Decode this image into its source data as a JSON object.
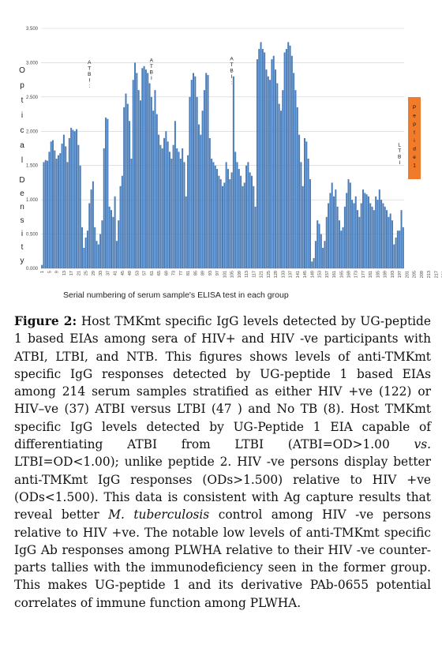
{
  "chart_data": {
    "type": "bar",
    "title": "",
    "ylabel": "Optical Density",
    "xlabel": "Serial numbering of serum sample's ELISA test in each group",
    "ylim": [
      0,
      3.5
    ],
    "yticks": [
      "0.000",
      "0.500",
      "1.000",
      "1.500",
      "2.000",
      "2.500",
      "3.000",
      "3.500"
    ],
    "xticks": [
      1,
      5,
      9,
      13,
      17,
      21,
      25,
      29,
      33,
      37,
      41,
      45,
      49,
      53,
      57,
      61,
      65,
      69,
      73,
      77,
      81,
      85,
      89,
      93,
      97,
      101,
      105,
      109,
      113,
      117,
      121,
      125,
      129,
      133,
      137,
      141,
      145,
      149,
      153,
      157,
      161,
      165,
      169,
      173,
      177,
      181,
      185,
      189,
      193,
      197,
      201,
      205,
      209,
      213,
      217,
      221,
      225,
      229,
      233,
      237,
      241,
      245
    ],
    "values": [
      0.05,
      1.55,
      1.58,
      1.57,
      1.7,
      1.85,
      1.87,
      1.72,
      1.6,
      1.65,
      1.68,
      1.82,
      1.95,
      1.78,
      1.55,
      1.9,
      2.05,
      2.02,
      2.0,
      2.03,
      1.8,
      1.5,
      0.6,
      0.3,
      0.45,
      0.55,
      0.95,
      1.15,
      1.27,
      0.6,
      0.4,
      0.35,
      0.5,
      0.7,
      1.75,
      2.2,
      2.18,
      0.9,
      0.85,
      0.75,
      1.05,
      0.4,
      0.7,
      1.2,
      1.35,
      2.35,
      2.55,
      2.4,
      2.15,
      1.6,
      2.75,
      3.0,
      2.85,
      2.6,
      2.45,
      2.92,
      2.95,
      2.9,
      2.85,
      2.7,
      2.5,
      2.3,
      2.6,
      2.25,
      1.95,
      1.8,
      1.75,
      1.9,
      2.0,
      1.85,
      1.7,
      1.6,
      1.8,
      2.15,
      1.75,
      1.7,
      1.6,
      1.75,
      1.55,
      1.05,
      1.65,
      2.5,
      2.75,
      2.85,
      2.8,
      2.5,
      2.1,
      1.95,
      2.3,
      2.6,
      2.85,
      2.82,
      1.9,
      1.6,
      1.55,
      1.5,
      1.45,
      1.35,
      1.3,
      1.2,
      1.25,
      1.55,
      1.45,
      1.3,
      1.4,
      2.8,
      1.7,
      1.55,
      1.45,
      1.35,
      1.2,
      1.25,
      1.5,
      1.55,
      1.4,
      1.35,
      1.2,
      0.9,
      3.05,
      3.2,
      3.3,
      3.2,
      3.15,
      2.9,
      2.8,
      2.75,
      3.05,
      3.1,
      2.9,
      2.7,
      2.4,
      2.3,
      2.6,
      3.15,
      3.2,
      3.3,
      3.25,
      3.1,
      2.85,
      2.6,
      2.35,
      1.95,
      1.55,
      1.2,
      1.9,
      1.85,
      1.6,
      1.3,
      0.1,
      0.15,
      0.4,
      0.7,
      0.65,
      0.5,
      0.3,
      0.4,
      0.75,
      0.95,
      1.1,
      1.25,
      1.05,
      1.15,
      0.9,
      0.7,
      0.55,
      0.6,
      0.9,
      1.1,
      1.3,
      1.25,
      1.0,
      0.95,
      1.05,
      0.85,
      0.75,
      0.95,
      1.15,
      1.1,
      1.08,
      1.05,
      0.95,
      0.9,
      0.85,
      1.05,
      1.0,
      1.15,
      1.0,
      0.95,
      0.9,
      0.85,
      0.75,
      0.8,
      0.7,
      0.35,
      0.45,
      0.55,
      0.55,
      0.85,
      0.6
    ],
    "annotations": [
      {
        "text": "ATBI:",
        "x": 27,
        "y": 3.05
      },
      {
        "text": "ATBI",
        "x": 61,
        "y": 3.08
      },
      {
        "text": "ATBI:",
        "x": 105,
        "y": 3.1
      },
      {
        "text": "LTBI",
        "x": 197,
        "y": 1.85
      },
      {
        "text": "NTB",
        "x": 232,
        "y": 1.65
      }
    ],
    "side_label": "Peptide1",
    "side_color": "#f07b2a",
    "bar_color": "#4a7ebb",
    "grid": true
  },
  "caption": {
    "label": "Figure 2:",
    "text_a": " Host TMKmt specific IgG levels detected by UG-peptide 1 based EIAs among sera of HIV+ and HIV -ve participants with ATBI, LTBI, and NTB. This figures shows levels of anti-TMKmt specific IgG responses detected by UG-peptide 1 based EIAs among 214 serum samples stratified as either HIV +ve (122) or HIV–ve (37) ATBI versus LTBI (47 ) and No TB (8). Host TMKmt specific IgG levels detected by UG-Peptide 1 EIA capable of differentiating ATBI from LTBI (ATBI=OD>1.00 ",
    "vs": "vs.",
    "text_b": " LTBI=OD<1.00); unlike peptide 2. HIV -ve persons display better anti-TMKmt IgG responses (ODs>1.500) relative to HIV +ve (ODs<1.500). This data is consistent with Ag capture results that reveal better ",
    "organism": "M. tuberculosis",
    "text_c": " control among HIV -ve persons relative to HIV +ve. The notable low levels of anti-TMKmt specific IgG Ab responses among PLWHA relative to their HIV -ve counter-parts tallies with the immunodeficiency seen in the former group. This makes UG-peptide 1 and its derivative PAb-0655 potential correlates of immune function among PLWHA."
  }
}
